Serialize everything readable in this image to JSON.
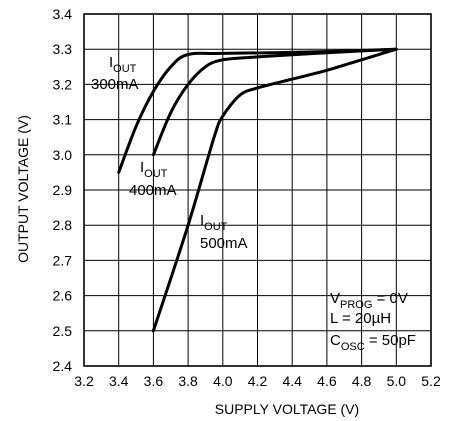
{
  "chart_data": {
    "type": "line",
    "xlabel": "SUPPLY VOLTAGE (V)",
    "ylabel": "OUTPUT VOLTAGE (V)",
    "xlim": [
      3.2,
      5.2
    ],
    "ylim": [
      2.4,
      3.4
    ],
    "x_ticks": [
      "3.2",
      "3.4",
      "3.6",
      "3.8",
      "4.0",
      "4.2",
      "4.4",
      "4.6",
      "4.8",
      "5.0",
      "5.2"
    ],
    "y_ticks": [
      "3.4",
      "3.3",
      "3.2",
      "3.1",
      "3.0",
      "2.9",
      "2.8",
      "2.7",
      "2.6",
      "2.5",
      "2.4"
    ],
    "grid": true,
    "series": [
      {
        "label_main": "I",
        "label_sub": "OUT",
        "label_value": "300mA",
        "points": [
          [
            3.4,
            2.95
          ],
          [
            3.5,
            3.08
          ],
          [
            3.6,
            3.18
          ],
          [
            3.7,
            3.25
          ],
          [
            3.8,
            3.285
          ],
          [
            4.0,
            3.288
          ],
          [
            4.5,
            3.292
          ],
          [
            5.0,
            3.3
          ]
        ]
      },
      {
        "label_main": "I",
        "label_sub": "OUT",
        "label_value": "400mA",
        "points": [
          [
            3.6,
            3.0
          ],
          [
            3.7,
            3.12
          ],
          [
            3.8,
            3.2
          ],
          [
            3.9,
            3.25
          ],
          [
            4.0,
            3.27
          ],
          [
            4.2,
            3.278
          ],
          [
            4.6,
            3.29
          ],
          [
            5.0,
            3.3
          ]
        ]
      },
      {
        "label_main": "I",
        "label_sub": "OUT",
        "label_value": "500mA",
        "points": [
          [
            3.6,
            2.5
          ],
          [
            3.8,
            2.8
          ],
          [
            3.95,
            3.05
          ],
          [
            4.0,
            3.11
          ],
          [
            4.1,
            3.17
          ],
          [
            4.2,
            3.19
          ],
          [
            4.4,
            3.215
          ],
          [
            4.6,
            3.24
          ],
          [
            4.8,
            3.27
          ],
          [
            5.0,
            3.3
          ]
        ]
      }
    ],
    "conditions": [
      {
        "main": "V",
        "sub": "PROG",
        "rest": " = 0V"
      },
      {
        "main": "L = 20µH",
        "sub": "",
        "rest": ""
      },
      {
        "main": "C",
        "sub": "OSC",
        "rest": " = 50pF"
      }
    ]
  }
}
